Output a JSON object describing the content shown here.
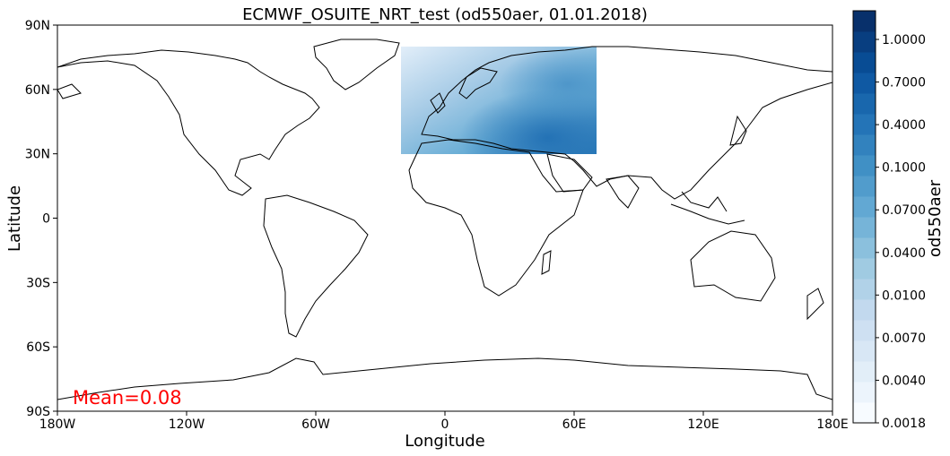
{
  "map": {
    "title": "ECMWF_OSUITE_NRT_test (od550aer, 01.01.2018)",
    "xlabel": "Longitude",
    "ylabel": "Latitude",
    "x_ticks": [
      "180W",
      "120W",
      "60W",
      "0",
      "60E",
      "120E",
      "180E"
    ],
    "y_ticks": [
      "90N",
      "60N",
      "30N",
      "0",
      "30S",
      "60S",
      "90S"
    ],
    "x_range_deg": [
      -180,
      180
    ],
    "y_range_deg": [
      -90,
      90
    ],
    "projection": "PlateCarree",
    "mean_label": "Mean=0.08",
    "mean_color": "#ff0000",
    "data_region": {
      "lon": [
        -20,
        70
      ],
      "lat": [
        30,
        80
      ],
      "variable": "od550aer"
    }
  },
  "colorbar": {
    "label": "od550aer",
    "cmap": "Blues",
    "tick_labels": [
      "1.0000",
      "0.7000",
      "0.4000",
      "0.1000",
      "0.0700",
      "0.0400",
      "0.0100",
      "0.0070",
      "0.0040",
      "0.0018"
    ],
    "levels": 20
  },
  "chart_data": {
    "type": "heatmap",
    "title": "ECMWF_OSUITE_NRT_test (od550aer, 01.01.2018)",
    "xlabel": "Longitude",
    "ylabel": "Latitude",
    "xlim": [
      -180,
      180
    ],
    "ylim": [
      -90,
      90
    ],
    "annotation": "Mean=0.08"
  },
  "colors": {
    "coastline": "#000000",
    "cbar_light": "#f7fbff",
    "cbar_dark": "#08306b"
  }
}
